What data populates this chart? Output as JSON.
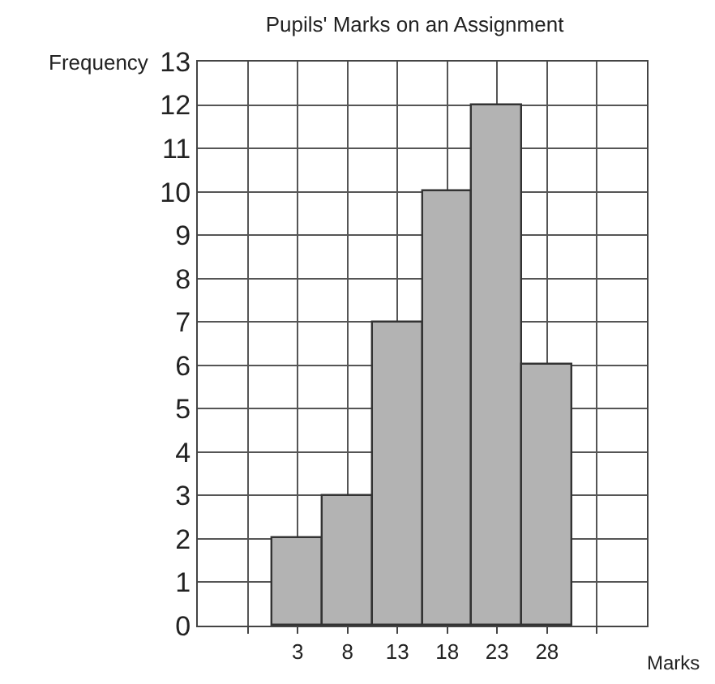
{
  "chart_data": {
    "type": "histogram",
    "title": "Pupils' Marks on an Assignment",
    "xlabel": "Marks",
    "ylabel": "Frequency",
    "bins": [
      0.5,
      5.5,
      10.5,
      15.5,
      20.5,
      25.5,
      30.5
    ],
    "values": [
      2,
      3,
      7,
      10,
      12,
      6
    ],
    "color": "#b3b3b3",
    "xlim": [
      -7,
      38
    ],
    "xticks": [
      {
        "value": -2,
        "label": null
      },
      3,
      8,
      13,
      18,
      23,
      28,
      {
        "value": 33,
        "label": null
      }
    ],
    "ylim": [
      0,
      13
    ],
    "yticks": [
      0,
      1,
      2,
      3,
      4,
      5,
      6,
      7,
      8,
      9,
      10,
      11,
      12,
      13
    ],
    "grid": true
  }
}
